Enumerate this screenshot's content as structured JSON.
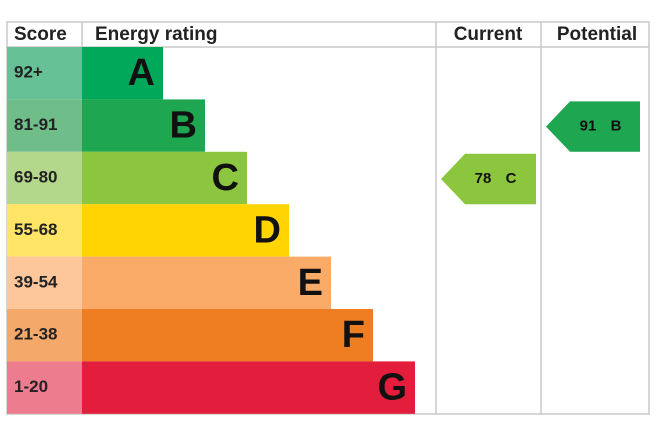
{
  "header": {
    "score": "Score",
    "rating": "Energy rating",
    "current": "Current",
    "potential": "Potential"
  },
  "bands": [
    {
      "score": "92+",
      "letter": "A"
    },
    {
      "score": "81-91",
      "letter": "B"
    },
    {
      "score": "69-80",
      "letter": "C"
    },
    {
      "score": "55-68",
      "letter": "D"
    },
    {
      "score": "39-54",
      "letter": "E"
    },
    {
      "score": "21-38",
      "letter": "F"
    },
    {
      "score": "1-20",
      "letter": "G"
    }
  ],
  "current": {
    "score": "78",
    "letter": "C"
  },
  "potential": {
    "score": "91",
    "letter": "B"
  }
}
